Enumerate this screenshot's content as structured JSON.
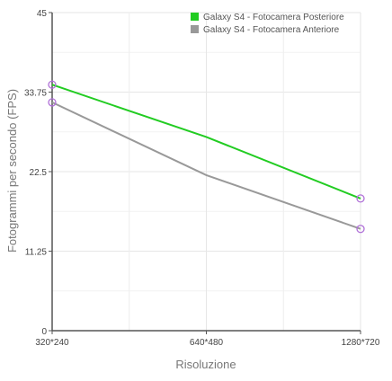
{
  "chart_data": {
    "type": "line",
    "title": "",
    "xlabel": "Risoluzione",
    "ylabel": "Fotogrammi per secondo (FPS)",
    "categories": [
      "320*240",
      "640*480",
      "1280*720"
    ],
    "x_ticks": [
      "320*240",
      "640*480",
      "1280*720"
    ],
    "y_ticks": [
      "0",
      "11.25",
      "22.5",
      "33.75",
      "45"
    ],
    "ylim": [
      0,
      45
    ],
    "grid": true,
    "legend_position": "top-right",
    "series": [
      {
        "name": "Galaxy S4 -  Fotocamera Posteriore",
        "color": "#22cc22",
        "values": [
          34.8,
          27.4,
          18.7
        ]
      },
      {
        "name": "Galaxy S4 - Fotocamera Anteriore",
        "color": "#999999",
        "values": [
          32.3,
          22.0,
          14.4
        ]
      }
    ],
    "marker_color": "#b070d8"
  }
}
